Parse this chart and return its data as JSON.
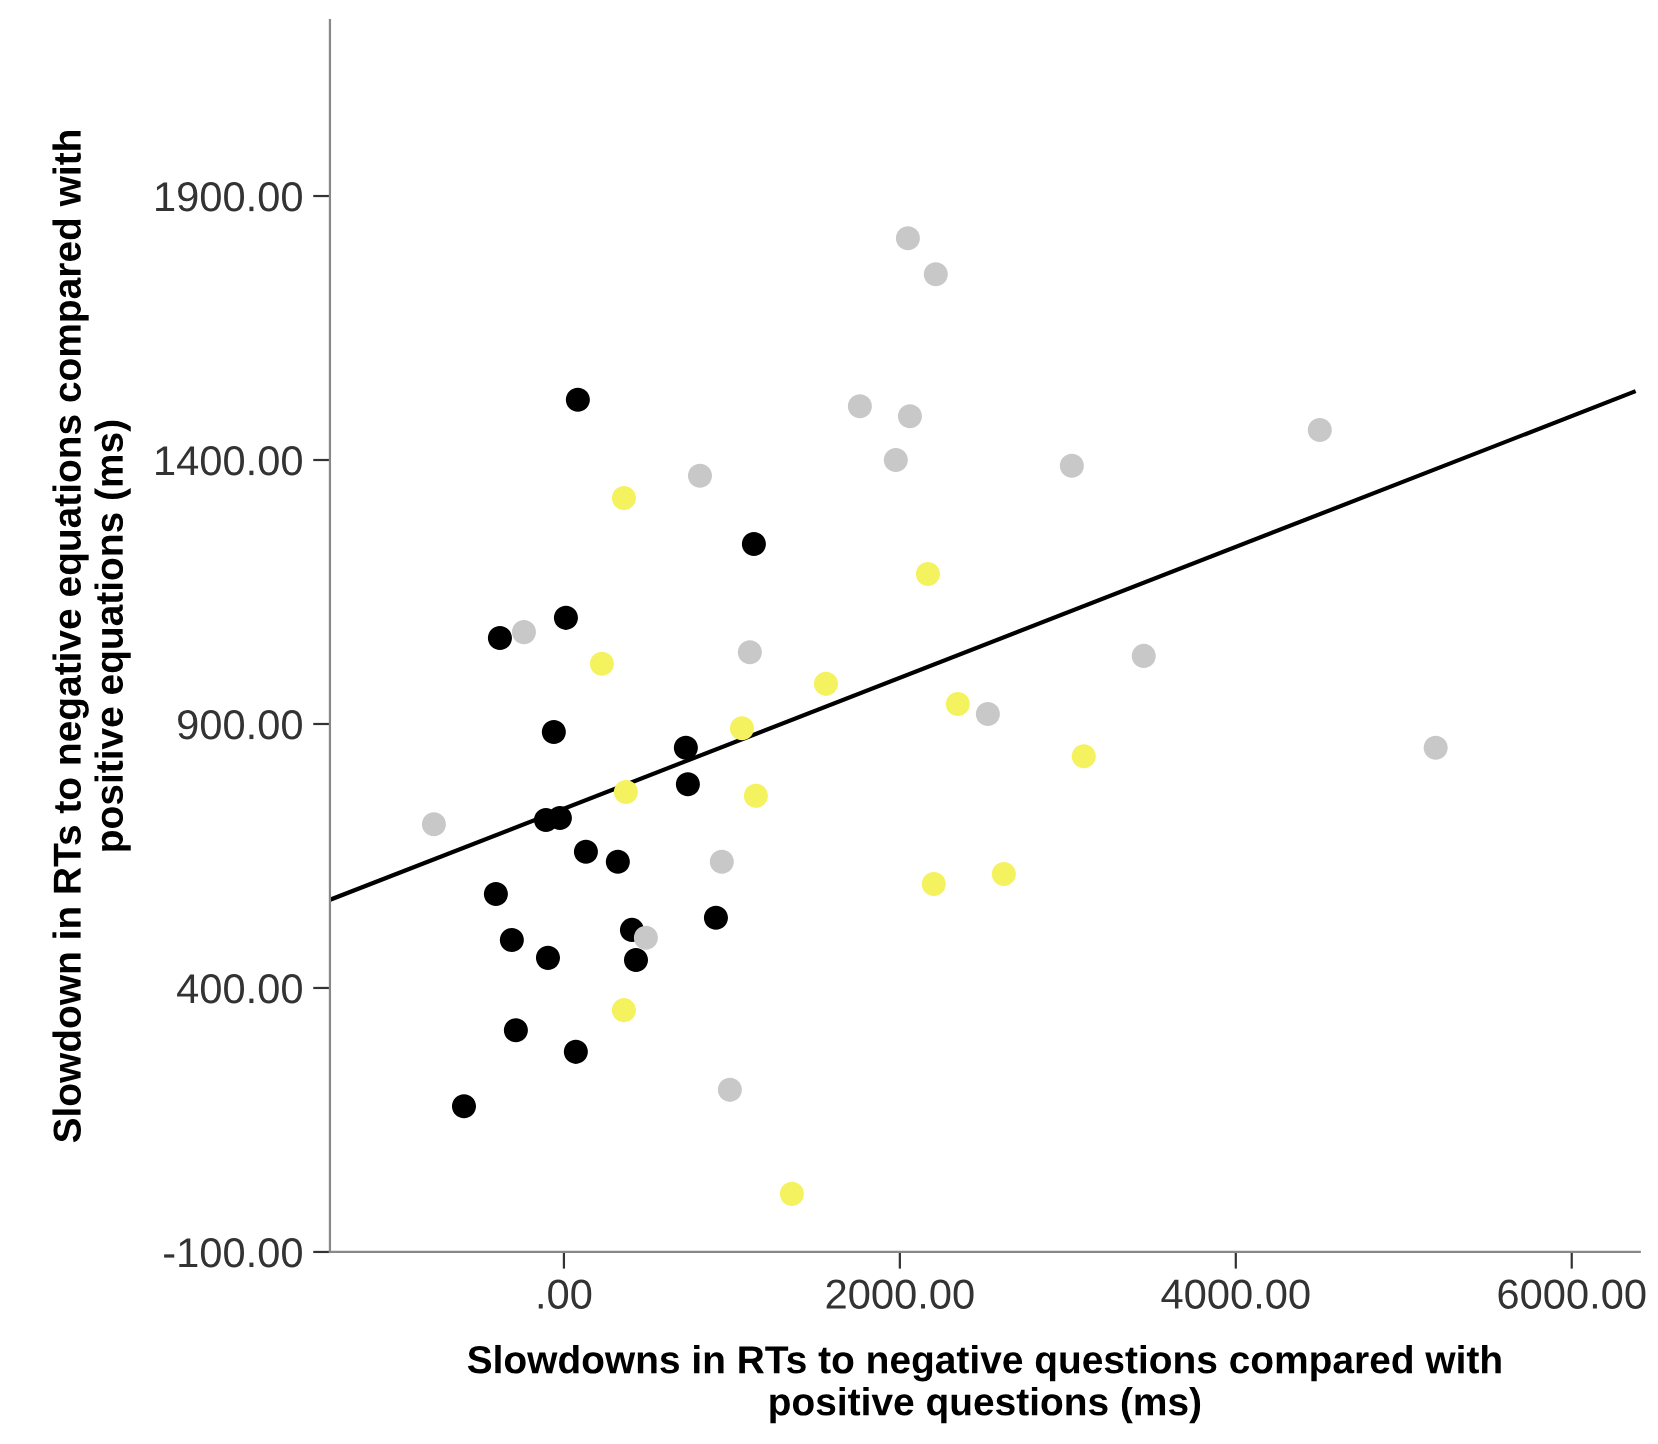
{
  "chart_data": {
    "type": "scatter",
    "xlabel": "Slowdowns in RTs to negative questions compared with\npositive questions (ms)",
    "ylabel": "Slowdown in RTs to negative equations compared with\npositive equations (ms)",
    "xlim": [
      -1393,
      6405
    ],
    "ylim": [
      -100,
      2233
    ],
    "xticks": [
      {
        "value": 0,
        "label": ".00"
      },
      {
        "value": 2000,
        "label": "2000.00"
      },
      {
        "value": 4000,
        "label": "4000.00"
      },
      {
        "value": 6000,
        "label": "6000.00"
      }
    ],
    "yticks": [
      {
        "value": -100,
        "label": "-100.00"
      },
      {
        "value": 400,
        "label": "400.00"
      },
      {
        "value": 900,
        "label": "900.00"
      },
      {
        "value": 1400,
        "label": "1400.00"
      },
      {
        "value": 1900,
        "label": "1900.00"
      }
    ],
    "grid": false,
    "marker": "circle",
    "series": [
      {
        "color": "#000000",
        "x": [
          83,
          -381,
          12,
          1131,
          -60,
          -107,
          -24,
          726,
          738,
          131,
          321,
          -405,
          -310,
          -95,
          405,
          429,
          905,
          -286,
          71,
          -595
        ],
        "values": [
          1514,
          1063,
          1101,
          1241,
          885,
          718,
          722,
          855,
          786,
          658,
          639,
          578,
          491,
          457,
          510,
          453,
          533,
          320,
          279,
          176
        ]
      },
      {
        "color": "#c8c8c8",
        "x": [
          -774,
          -238,
          810,
          1107,
          940,
          488,
          988,
          2048,
          2214,
          1762,
          2060,
          1976,
          3024,
          4500,
          3452,
          2524,
          5190
        ],
        "values": [
          710,
          1074,
          1370,
          1036,
          639,
          495,
          207,
          1820,
          1752,
          1502,
          1483,
          1400,
          1389,
          1457,
          1029,
          919,
          855
        ]
      },
      {
        "color": "#f5f260",
        "x": [
          357,
          226,
          1560,
          1060,
          369,
          1143,
          357,
          1357,
          2167,
          2345,
          3095,
          2202,
          2619
        ],
        "values": [
          1328,
          1014,
          976,
          892,
          771,
          764,
          358,
          10,
          1184,
          938,
          839,
          597,
          616
        ]
      },
      {
        "type": "line",
        "color": "#000000",
        "marker": "none",
        "x": [
          -1393,
          6369
        ],
        "values": [
          567,
          1529
        ]
      }
    ]
  }
}
